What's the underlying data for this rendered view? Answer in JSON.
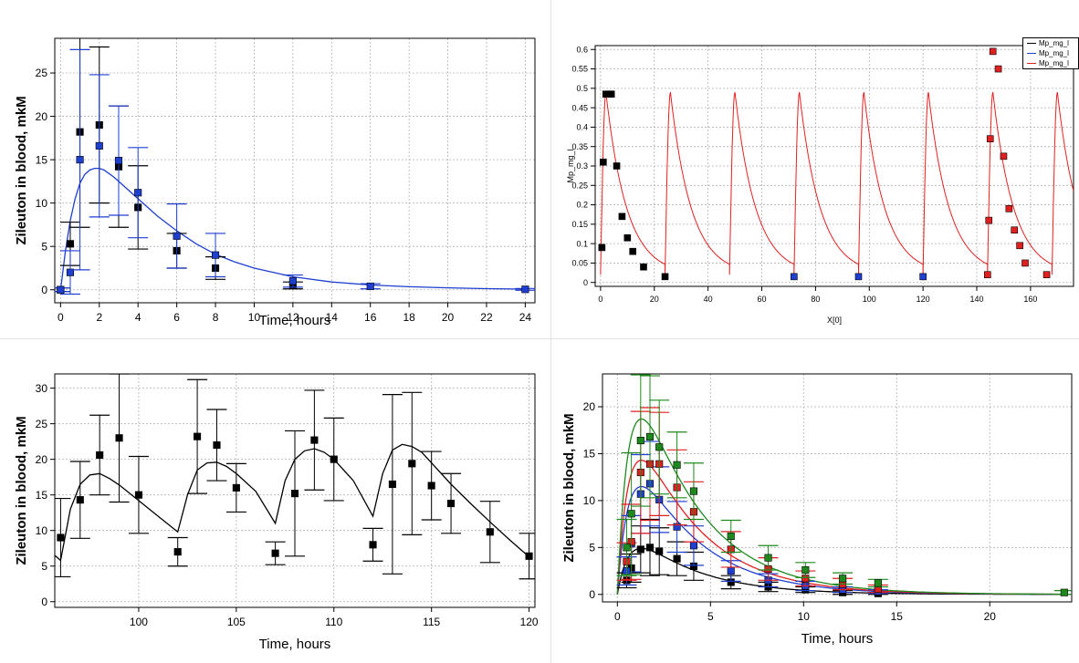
{
  "chart_data": [
    {
      "id": "p1",
      "type": "scatter",
      "xlabel": "Time, hours",
      "ylabel": "Zileuton in blood, mkM",
      "xlim": [
        -0.3,
        24.5
      ],
      "ylim": [
        -1.5,
        29
      ],
      "xticks": [
        0,
        2,
        4,
        6,
        8,
        10,
        12,
        14,
        16,
        18,
        20,
        22,
        24
      ],
      "yticks": [
        0,
        5,
        10,
        15,
        20,
        25
      ],
      "grid": true,
      "series": [
        {
          "kind": "line",
          "color": "#1f3fd0",
          "x": [
            0,
            0.25,
            0.5,
            0.75,
            1,
            1.25,
            1.5,
            1.75,
            2,
            2.25,
            2.5,
            2.75,
            3,
            3.5,
            4,
            4.5,
            5,
            6,
            7,
            8,
            9,
            10,
            12,
            14,
            16,
            18,
            20,
            22,
            24
          ],
          "y": [
            0,
            4.5,
            8,
            10.5,
            12.3,
            13.3,
            13.8,
            14,
            14,
            13.8,
            13.4,
            13,
            12.5,
            11.5,
            10.5,
            9.5,
            8.5,
            6.8,
            5.3,
            4.1,
            3.2,
            2.5,
            1.5,
            0.9,
            0.55,
            0.35,
            0.22,
            0.13,
            0.08
          ]
        },
        {
          "kind": "points",
          "color": "#000000",
          "errcolor": "#000000",
          "x": [
            0,
            0.5,
            1,
            2,
            3,
            4,
            6,
            8,
            12
          ],
          "y": [
            0,
            5.3,
            18.2,
            19,
            14.2,
            9.5,
            4.5,
            2.5,
            0.5
          ],
          "err": [
            0.2,
            2.5,
            11,
            9,
            7,
            4.8,
            2,
            1.3,
            0.4
          ]
        },
        {
          "kind": "points",
          "color": "#1f3fd0",
          "errcolor": "#1f3fd0",
          "x": [
            0,
            0.5,
            1,
            2,
            3,
            4,
            6,
            8,
            12,
            16,
            24
          ],
          "y": [
            0,
            2,
            15,
            16.6,
            14.9,
            11.2,
            6.2,
            4,
            1,
            0.4,
            0.05
          ],
          "err": [
            0.2,
            2.5,
            12.7,
            8.2,
            6.3,
            5.2,
            3.7,
            2.5,
            0.7,
            0.3,
            0.1
          ]
        }
      ]
    },
    {
      "id": "p2",
      "type": "scatter",
      "xlabel": "X[0]",
      "ylabel": "Mp_mg_l",
      "xlim": [
        -2,
        176
      ],
      "ylim": [
        -0.01,
        0.61
      ],
      "xticks": [
        0,
        20,
        40,
        60,
        80,
        100,
        120,
        140,
        160
      ],
      "yticks": [
        0,
        0.05,
        0.1,
        0.15,
        0.2,
        0.25,
        0.3,
        0.35,
        0.4,
        0.45,
        0.5,
        0.55,
        0.6
      ],
      "yticklabels": [
        "0",
        "0.05",
        "0.1",
        "0.15",
        "0.2",
        "0.25",
        "0.3",
        "0.35",
        "0.4",
        "0.45",
        "0.5",
        "0.55",
        "0.6"
      ],
      "grid": true,
      "legend": [
        "Mp_mg_l",
        "Mp_mg_l",
        "Mp_mg_l"
      ],
      "legend_colors": [
        "#000000",
        "#1f3fd0",
        "#e02020"
      ],
      "series": [
        {
          "kind": "points",
          "color": "#000000",
          "x": [
            0.5,
            1,
            2,
            3,
            4,
            6,
            8,
            10,
            12,
            16,
            24
          ],
          "y": [
            0.09,
            0.31,
            0.485,
            0.485,
            0.485,
            0.3,
            0.17,
            0.115,
            0.08,
            0.04,
            0.015
          ]
        },
        {
          "kind": "points",
          "color": "#1f3fd0",
          "x": [
            72,
            96,
            120
          ],
          "y": [
            0.015,
            0.015,
            0.015
          ]
        },
        {
          "kind": "points",
          "color": "#e02020",
          "x": [
            144,
            144.5,
            145,
            146,
            148,
            150,
            152,
            154,
            156,
            158,
            166
          ],
          "y": [
            0.02,
            0.16,
            0.37,
            0.595,
            0.55,
            0.325,
            0.19,
            0.135,
            0.095,
            0.05,
            0.02
          ]
        }
      ],
      "curve": {
        "kind": "pk_multidose",
        "color": "#e02020",
        "period": 24,
        "n": 8,
        "peak": 0.49,
        "trough": 0.02
      }
    },
    {
      "id": "p3",
      "type": "scatter",
      "xlabel": "Time, hours",
      "ylabel": "Zileuton in blood, mkM",
      "xlim": [
        95.7,
        120.3
      ],
      "ylim": [
        -0.8,
        32
      ],
      "xticks": [
        100,
        105,
        110,
        115,
        120
      ],
      "yticks": [
        0,
        5,
        10,
        15,
        20,
        25,
        30
      ],
      "grid": true,
      "series": [
        {
          "kind": "line",
          "color": "#000000",
          "x": [
            95.7,
            96,
            96.5,
            97,
            97.5,
            98,
            98.5,
            99,
            100,
            101,
            102,
            102.5,
            103,
            103.5,
            104,
            104.5,
            105,
            106,
            107,
            107.5,
            108,
            108.5,
            109,
            109.5,
            110,
            111,
            112,
            112.5,
            113,
            113.5,
            114,
            114.5,
            115,
            116,
            117,
            118,
            119,
            120
          ],
          "y": [
            6.5,
            5.8,
            13,
            16.5,
            17.8,
            18,
            17.3,
            16.4,
            14.2,
            12,
            9.8,
            15,
            18.5,
            19.5,
            19.6,
            19,
            18,
            15.5,
            11,
            17,
            20,
            21.2,
            21.5,
            21,
            20,
            17,
            12,
            18,
            21.3,
            22.1,
            21.8,
            21,
            19.5,
            16.5,
            13.8,
            11.2,
            8.7,
            6.3
          ]
        },
        {
          "kind": "points",
          "color": "#000000",
          "errcolor": "#000000",
          "x": [
            96,
            97,
            98,
            99,
            100,
            102,
            103,
            104,
            105,
            107,
            108,
            109,
            110,
            112,
            113,
            114,
            115,
            116,
            118,
            120
          ],
          "y": [
            9,
            14.3,
            20.6,
            23,
            15,
            7,
            23.2,
            22,
            16,
            6.8,
            15.2,
            22.7,
            20,
            8,
            16.5,
            19.4,
            16.3,
            13.8,
            9.8,
            6.4
          ],
          "err": [
            5.5,
            5.4,
            5.6,
            9,
            5.4,
            2,
            8,
            5,
            3.4,
            1.6,
            8.8,
            7,
            5.8,
            2.3,
            12.6,
            10,
            4.8,
            4.2,
            4.3,
            3.2
          ]
        }
      ]
    },
    {
      "id": "p4",
      "type": "scatter",
      "xlabel": "Time, hours",
      "ylabel": "Zileuton in blood, mkM",
      "xlim": [
        -0.8,
        24.4
      ],
      "ylim": [
        -0.8,
        23.5
      ],
      "xticks": [
        0,
        5,
        10,
        15,
        20
      ],
      "yticks": [
        0,
        5,
        10,
        15,
        20
      ],
      "grid": true,
      "series": [
        {
          "kind": "pkcurve",
          "color": "#000000",
          "peak": 4.9
        },
        {
          "kind": "pkcurve",
          "color": "#1f3fd0",
          "peak": 11.5
        },
        {
          "kind": "pkcurve",
          "color": "#e02020",
          "peak": 14.3
        },
        {
          "kind": "pkcurve",
          "color": "#1e8a1e",
          "peak": 18.7
        },
        {
          "kind": "points",
          "color": "#000000",
          "errcolor": "#000000",
          "x": [
            0.5,
            0.75,
            1.25,
            1.75,
            2.25,
            3.2,
            4.1,
            6.1,
            8.1,
            10.1,
            12.1,
            14
          ],
          "y": [
            1.5,
            2.8,
            4.8,
            5,
            4.6,
            3.8,
            3,
            1.3,
            0.8,
            0.5,
            0.2,
            0.1
          ],
          "err": [
            0.8,
            1.5,
            2.5,
            3,
            2.5,
            1.8,
            1.5,
            0.7,
            0.5,
            0.3,
            0.2,
            0.1
          ]
        },
        {
          "kind": "points",
          "color": "#1f3fd0",
          "errcolor": "#1f3fd0",
          "x": [
            0.5,
            0.75,
            1.25,
            1.75,
            2.25,
            3.2,
            4.1,
            6.1,
            8.1,
            10.1,
            12.1,
            14
          ],
          "y": [
            2.5,
            5.4,
            10.7,
            11.8,
            10.1,
            7.2,
            5.2,
            2.5,
            1.5,
            0.9,
            0.5,
            0.3
          ],
          "err": [
            1.5,
            3,
            4.2,
            4.5,
            3.5,
            2.7,
            2.1,
            1.1,
            0.7,
            0.5,
            0.3,
            0.2
          ]
        },
        {
          "kind": "points",
          "color": "#e02020",
          "errcolor": "#e02020",
          "x": [
            0.5,
            0.75,
            1.25,
            1.75,
            2.25,
            3.2,
            4.1,
            6.1,
            8.1,
            10.1,
            12.1,
            14
          ],
          "y": [
            3.5,
            5.6,
            13,
            13.9,
            13.9,
            11.4,
            8.8,
            4.8,
            2.7,
            1.7,
            1.1,
            0.6
          ],
          "err": [
            2,
            4,
            6.5,
            6,
            5.5,
            4,
            3.2,
            1.9,
            1.2,
            0.8,
            0.6,
            0.4
          ]
        },
        {
          "kind": "points",
          "color": "#1e8a1e",
          "errcolor": "#1e8a1e",
          "x": [
            0.5,
            0.75,
            1.25,
            1.75,
            2.25,
            3.2,
            4.1,
            6.1,
            8.1,
            10.1,
            12.1,
            14,
            24
          ],
          "y": [
            5,
            8.6,
            16.4,
            16.8,
            15.7,
            13.8,
            11,
            6.2,
            3.9,
            2.6,
            1.7,
            1.2,
            0.2
          ],
          "err": [
            3,
            6.5,
            7,
            6.5,
            5,
            3.5,
            3,
            1.7,
            1.3,
            0.8,
            0.6,
            0.4,
            0.2
          ]
        }
      ]
    }
  ]
}
